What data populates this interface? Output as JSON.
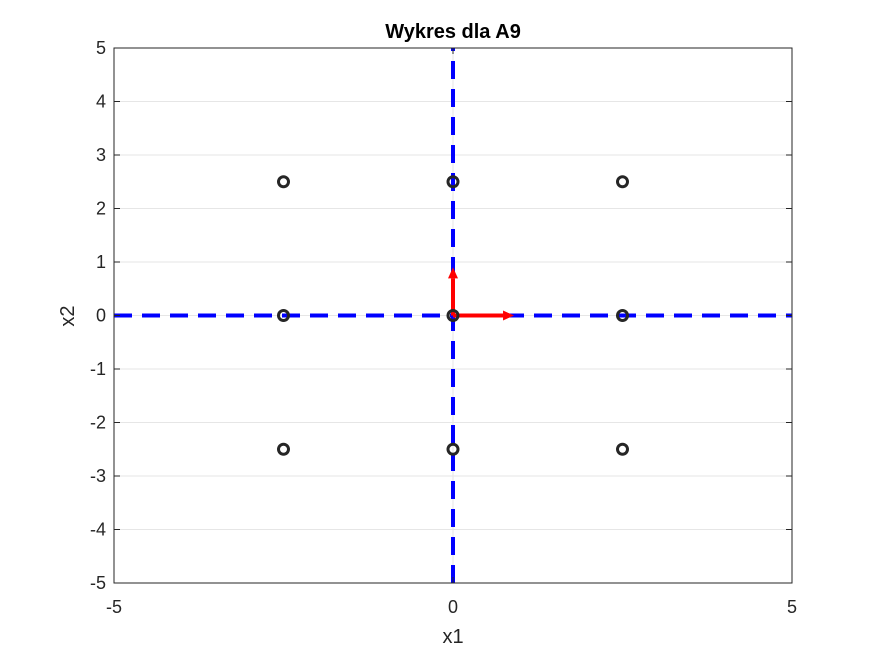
{
  "chart_data": {
    "type": "scatter",
    "title": "Wykres dla A9",
    "xlabel": "x1",
    "ylabel": "x2",
    "xlim": [
      -5,
      5
    ],
    "ylim": [
      -5,
      5
    ],
    "x_ticks": [
      "-5",
      "0",
      "5"
    ],
    "y_ticks": [
      "5",
      "4",
      "3",
      "2",
      "1",
      "0",
      "-1",
      "-2",
      "-3",
      "-4",
      "-5"
    ],
    "grid": true,
    "points": [
      {
        "x": -2.5,
        "y": 2.5
      },
      {
        "x": 0,
        "y": 2.5
      },
      {
        "x": 2.5,
        "y": 2.5
      },
      {
        "x": -2.5,
        "y": 0
      },
      {
        "x": 0,
        "y": 0
      },
      {
        "x": 2.5,
        "y": 0
      },
      {
        "x": -2.5,
        "y": -2.5
      },
      {
        "x": 0,
        "y": -2.5
      },
      {
        "x": 2.5,
        "y": -2.5
      }
    ],
    "dashed_lines": [
      {
        "x1": -5,
        "y1": 0,
        "x2": 5,
        "y2": 0
      },
      {
        "x1": 0,
        "y1": -5,
        "x2": 0,
        "y2": 5
      }
    ],
    "vectors": [
      {
        "x0": 0,
        "y0": 0,
        "dx": 0.9,
        "dy": 0
      },
      {
        "x0": 0,
        "y0": 0,
        "dx": 0,
        "dy": 0.9
      }
    ],
    "colors": {
      "points": "#262626",
      "dashed_lines": "#0000ff",
      "vectors": "#ff0000",
      "grid": "#e6e6e6",
      "axes": "#262626"
    }
  }
}
